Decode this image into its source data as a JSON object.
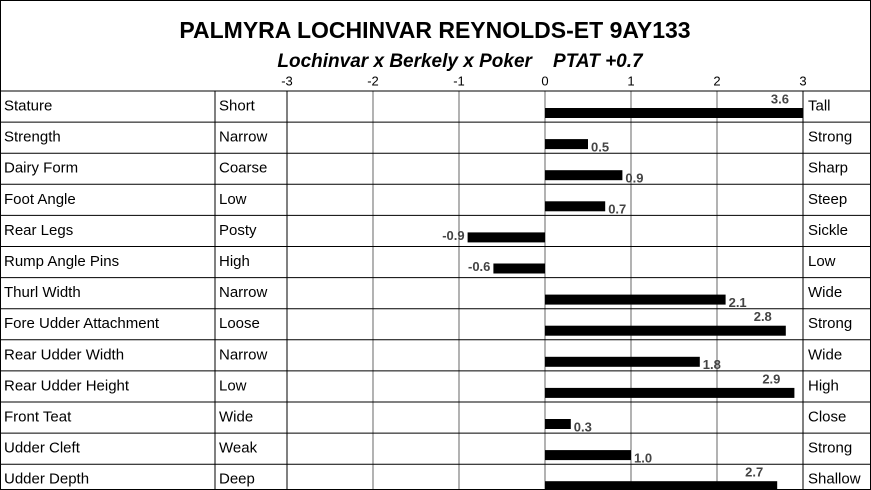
{
  "chart_data": {
    "type": "bar",
    "orientation": "horizontal",
    "title": "PALMYRA LOCHINVAR REYNOLDS-ET  9AY133",
    "subtitle": "Lochinvar x Berkely x Poker    PTAT +0.7",
    "categories": [
      "Stature",
      "Strength",
      "Dairy Form",
      "Foot Angle",
      "Rear Legs",
      "Rump Angle Pins",
      "Thurl Width",
      "Fore Udder Attachment",
      "Rear Udder Width",
      "Rear Udder Height",
      "Front Teat",
      "Udder Cleft",
      "Udder Depth"
    ],
    "low_labels": [
      "Short",
      "Narrow",
      "Coarse",
      "Low",
      "Posty",
      "High",
      "Narrow",
      "Loose",
      "Narrow",
      "Low",
      "Wide",
      "Weak",
      "Deep"
    ],
    "high_labels": [
      "Tall",
      "Strong",
      "Sharp",
      "Steep",
      "Sickle",
      "Low",
      "Wide",
      "Strong",
      "Wide",
      "High",
      "Close",
      "Strong",
      "Shallow"
    ],
    "values": [
      3.6,
      0.5,
      0.9,
      0.7,
      -0.9,
      -0.6,
      2.1,
      2.8,
      1.8,
      2.9,
      0.3,
      1.0,
      2.7
    ],
    "value_labels": [
      "3.6",
      "0.5",
      "0.9",
      "0.7",
      "-0.9",
      "-0.6",
      "2.1",
      "2.8",
      "1.8",
      "2.9",
      "0.3",
      "1.0",
      "2.7"
    ],
    "color": "#000000",
    "xlim": [
      -3,
      3
    ],
    "xticks": [
      -3,
      -2,
      -1,
      0,
      1,
      2,
      3
    ],
    "grid": true
  }
}
